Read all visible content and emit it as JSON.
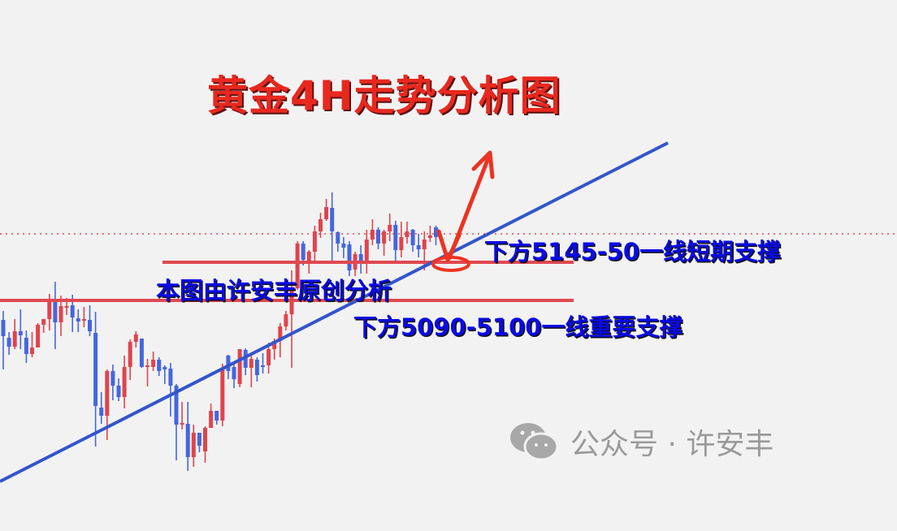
{
  "title": "黄金4H走势分析图",
  "annotations": {
    "support_short": "下方5145-50一线短期支撑",
    "author_note": "本图由许安丰原创分析",
    "support_major": "下方5090-5100一线重要支撑"
  },
  "watermark": {
    "icon": "wechat-icon",
    "text": "公众号 · 许安丰"
  },
  "colors": {
    "up": "#e0444c",
    "down": "#4466e0",
    "trendline": "#3355cc",
    "support_line": "#e04850",
    "arrow": "#ee3322",
    "title": "#e8281e",
    "label": "#0a0ae6"
  },
  "chart_data": {
    "type": "candlestick",
    "timeframe": "4H",
    "axes_shown": false,
    "grid": false,
    "up_color_meaning": "red = rising, blue = falling",
    "ohlc": [
      [
        5076,
        5087,
        5015,
        5056
      ],
      [
        5054,
        5061,
        5033,
        5043
      ],
      [
        5043,
        5077,
        5040,
        5062
      ],
      [
        5062,
        5089,
        5040,
        5057
      ],
      [
        5054,
        5063,
        5023,
        5034
      ],
      [
        5034,
        5061,
        5030,
        5042
      ],
      [
        5042,
        5072,
        5042,
        5070
      ],
      [
        5070,
        5077,
        5060,
        5077
      ],
      [
        5077,
        5108,
        5063,
        5101
      ],
      [
        5098,
        5123,
        5040,
        5073
      ],
      [
        5073,
        5106,
        5056,
        5093
      ],
      [
        5091,
        5103,
        5082,
        5093
      ],
      [
        5094,
        5107,
        5061,
        5079
      ],
      [
        5078,
        5089,
        5061,
        5074
      ],
      [
        5075,
        5092,
        5067,
        5077
      ],
      [
        5076,
        5094,
        5056,
        5062
      ],
      [
        5060,
        5086,
        4920,
        4970
      ],
      [
        4968,
        4987,
        4948,
        4958
      ],
      [
        4958,
        5015,
        4928,
        5013
      ],
      [
        5013,
        5021,
        4977,
        4995
      ],
      [
        4995,
        5004,
        4976,
        4981
      ],
      [
        4981,
        5032,
        4967,
        5018
      ],
      [
        5018,
        5052,
        5002,
        5049
      ],
      [
        5049,
        5062,
        5042,
        5058
      ],
      [
        5053,
        5053,
        5017,
        5018
      ],
      [
        5018,
        5028,
        4994,
        5020
      ],
      [
        5018,
        5037,
        5013,
        5027
      ],
      [
        5027,
        5030,
        5007,
        5013
      ],
      [
        5018,
        5020,
        4997,
        5015
      ],
      [
        5016,
        5023,
        4957,
        4995
      ],
      [
        4995,
        4997,
        4903,
        4947
      ],
      [
        4947,
        4975,
        4941,
        4949
      ],
      [
        4948,
        4975,
        4890,
        4907
      ],
      [
        4907,
        4947,
        4895,
        4937
      ],
      [
        4937,
        4937,
        4913,
        4921
      ],
      [
        4914,
        4945,
        4900,
        4943
      ],
      [
        4943,
        4973,
        4943,
        4964
      ],
      [
        4964,
        4964,
        4947,
        4952
      ],
      [
        4952,
        5022,
        4945,
        5017
      ],
      [
        5032,
        5033,
        5003,
        5013
      ],
      [
        5018,
        5022,
        4992,
        5003
      ],
      [
        4997,
        5040,
        4993,
        5040
      ],
      [
        5039,
        5041,
        5008,
        5017
      ],
      [
        5017,
        5035,
        4993,
        5028
      ],
      [
        5027,
        5030,
        5000,
        5008
      ],
      [
        5020,
        5035,
        5010,
        5018
      ],
      [
        5020,
        5048,
        5010,
        5040
      ],
      [
        5040,
        5053,
        5027,
        5050
      ],
      [
        5050,
        5072,
        5030,
        5068
      ],
      [
        5068,
        5087,
        5063,
        5083
      ],
      [
        5083,
        5137,
        5017,
        5115
      ],
      [
        5115,
        5173,
        5113,
        5170
      ],
      [
        5170,
        5173,
        5143,
        5150
      ],
      [
        5147,
        5162,
        5133,
        5160
      ],
      [
        5160,
        5192,
        5147,
        5185
      ],
      [
        5185,
        5208,
        5177,
        5200
      ],
      [
        5200,
        5225,
        5198,
        5215
      ],
      [
        5214,
        5233,
        5148,
        5185
      ],
      [
        5184,
        5185,
        5160,
        5170
      ],
      [
        5170,
        5178,
        5152,
        5165
      ],
      [
        5169,
        5173,
        5130,
        5137
      ],
      [
        5138,
        5160,
        5130,
        5157
      ],
      [
        5157,
        5168,
        5133,
        5148
      ],
      [
        5148,
        5187,
        5133,
        5175
      ],
      [
        5175,
        5200,
        5168,
        5187
      ],
      [
        5187,
        5190,
        5163,
        5170
      ],
      [
        5170,
        5187,
        5155,
        5185
      ],
      [
        5185,
        5207,
        5173,
        5193
      ],
      [
        5193,
        5198,
        5148,
        5162
      ],
      [
        5162,
        5197,
        5153,
        5178
      ],
      [
        5178,
        5197,
        5170,
        5185
      ],
      [
        5187,
        5188,
        5160,
        5168
      ],
      [
        5168,
        5182,
        5153,
        5163
      ],
      [
        5163,
        5185,
        5137,
        5175
      ],
      [
        5177,
        5192,
        5172,
        5180
      ],
      [
        5190,
        5192,
        5168,
        5178
      ]
    ],
    "horizontal_levels": [
      {
        "name": "short-term-support",
        "price": 5147
      },
      {
        "name": "major-support",
        "price": 5100
      }
    ],
    "current_price_line": 5182
  }
}
